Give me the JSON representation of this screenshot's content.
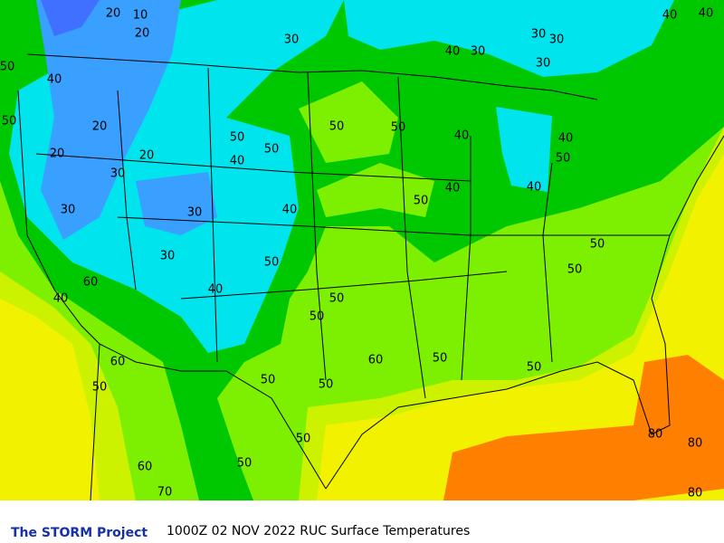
{
  "footer": {
    "brand": "The STORM Project",
    "caption": "1000Z 02 NOV 2022 RUC Surface Temperatures"
  },
  "map": {
    "contour_labels": [
      20,
      10,
      20,
      30,
      30,
      30,
      40,
      40,
      30,
      40,
      30,
      50,
      50,
      40,
      20,
      20,
      20,
      30,
      50,
      50,
      40,
      50,
      50,
      40,
      40,
      50,
      40,
      40,
      50,
      30,
      40,
      30,
      30,
      50,
      40,
      50,
      50,
      60,
      40,
      50,
      50,
      60,
      50,
      50,
      60,
      50,
      50,
      50,
      50,
      50,
      60,
      70,
      80,
      80,
      80
    ]
  }
}
